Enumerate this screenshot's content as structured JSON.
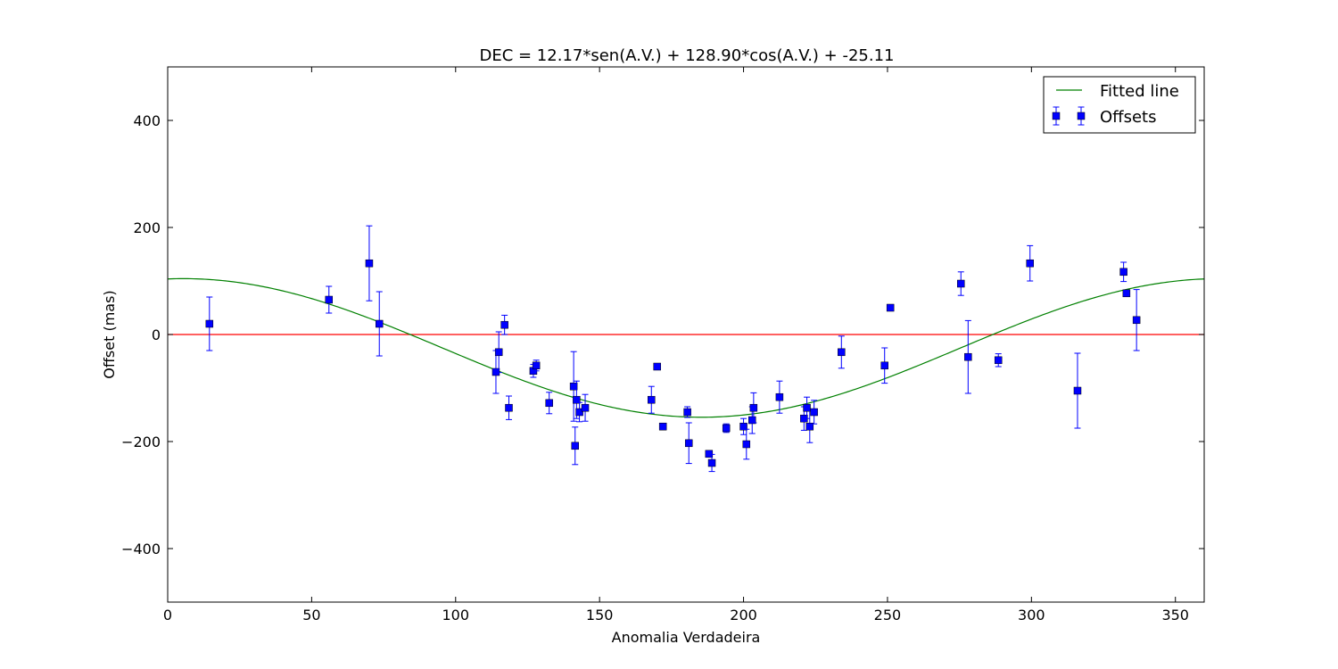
{
  "chart_data": {
    "type": "scatter",
    "title": "DEC = 12.17*sen(A.V.) + 128.90*cos(A.V.) + -25.11",
    "xlabel": "Anomalia Verdadeira",
    "ylabel": "Offset (mas)",
    "xlim": [
      0,
      360
    ],
    "ylim": [
      -500,
      500
    ],
    "xticks": [
      0,
      50,
      100,
      150,
      200,
      250,
      300,
      350
    ],
    "yticks": [
      -400,
      -200,
      0,
      200,
      400
    ],
    "grid": false,
    "legend_position": "upper-right",
    "fit": {
      "a_sin": 12.17,
      "b_cos": 128.9,
      "c": -25.11,
      "unit": "degrees"
    },
    "reference_line_y": 0,
    "series": [
      {
        "name": "Fitted line",
        "kind": "line",
        "color": "#008000"
      },
      {
        "name": "Offsets",
        "kind": "errorbar",
        "color": "#0000ff",
        "points": [
          {
            "x": 14.5,
            "y": 20,
            "err": 50
          },
          {
            "x": 56,
            "y": 65,
            "err": 25
          },
          {
            "x": 70,
            "y": 133,
            "err": 70
          },
          {
            "x": 73.5,
            "y": 20,
            "err": 60
          },
          {
            "x": 114,
            "y": -70,
            "err": 40
          },
          {
            "x": 115,
            "y": -33,
            "err": 38
          },
          {
            "x": 117,
            "y": 18,
            "err": 18
          },
          {
            "x": 118.5,
            "y": -137,
            "err": 22
          },
          {
            "x": 127,
            "y": -68,
            "err": 12
          },
          {
            "x": 128,
            "y": -58,
            "err": 10
          },
          {
            "x": 132.5,
            "y": -128,
            "err": 20
          },
          {
            "x": 141,
            "y": -97,
            "err": 65
          },
          {
            "x": 141.5,
            "y": -208,
            "err": 35
          },
          {
            "x": 142,
            "y": -122,
            "err": 35
          },
          {
            "x": 143,
            "y": -145,
            "err": 18
          },
          {
            "x": 145,
            "y": -137,
            "err": 25
          },
          {
            "x": 168,
            "y": -122,
            "err": 25
          },
          {
            "x": 170,
            "y": -60,
            "err": 4
          },
          {
            "x": 172,
            "y": -172,
            "err": 6
          },
          {
            "x": 180.5,
            "y": -145,
            "err": 10
          },
          {
            "x": 181,
            "y": -203,
            "err": 38
          },
          {
            "x": 188,
            "y": -223,
            "err": 5
          },
          {
            "x": 189,
            "y": -240,
            "err": 16
          },
          {
            "x": 194,
            "y": -175,
            "err": 8
          },
          {
            "x": 200,
            "y": -172,
            "err": 15
          },
          {
            "x": 201,
            "y": -205,
            "err": 28
          },
          {
            "x": 203,
            "y": -160,
            "err": 25
          },
          {
            "x": 203.5,
            "y": -137,
            "err": 28
          },
          {
            "x": 212.5,
            "y": -117,
            "err": 30
          },
          {
            "x": 221,
            "y": -157,
            "err": 22
          },
          {
            "x": 222,
            "y": -137,
            "err": 20
          },
          {
            "x": 223,
            "y": -172,
            "err": 30
          },
          {
            "x": 224.5,
            "y": -145,
            "err": 22
          },
          {
            "x": 234,
            "y": -33,
            "err": 30
          },
          {
            "x": 249,
            "y": -58,
            "err": 33
          },
          {
            "x": 251,
            "y": 50,
            "err": 4
          },
          {
            "x": 275.5,
            "y": 95,
            "err": 22
          },
          {
            "x": 278,
            "y": -42,
            "err": 68
          },
          {
            "x": 288.5,
            "y": -48,
            "err": 12
          },
          {
            "x": 299.5,
            "y": 133,
            "err": 33
          },
          {
            "x": 316,
            "y": -105,
            "err": 70
          },
          {
            "x": 332,
            "y": 117,
            "err": 18
          },
          {
            "x": 333,
            "y": 77,
            "err": 6
          },
          {
            "x": 336.5,
            "y": 27,
            "err": 57
          }
        ]
      }
    ],
    "colors": {
      "reference_line": "#ff0000",
      "frame": "#000000"
    }
  }
}
